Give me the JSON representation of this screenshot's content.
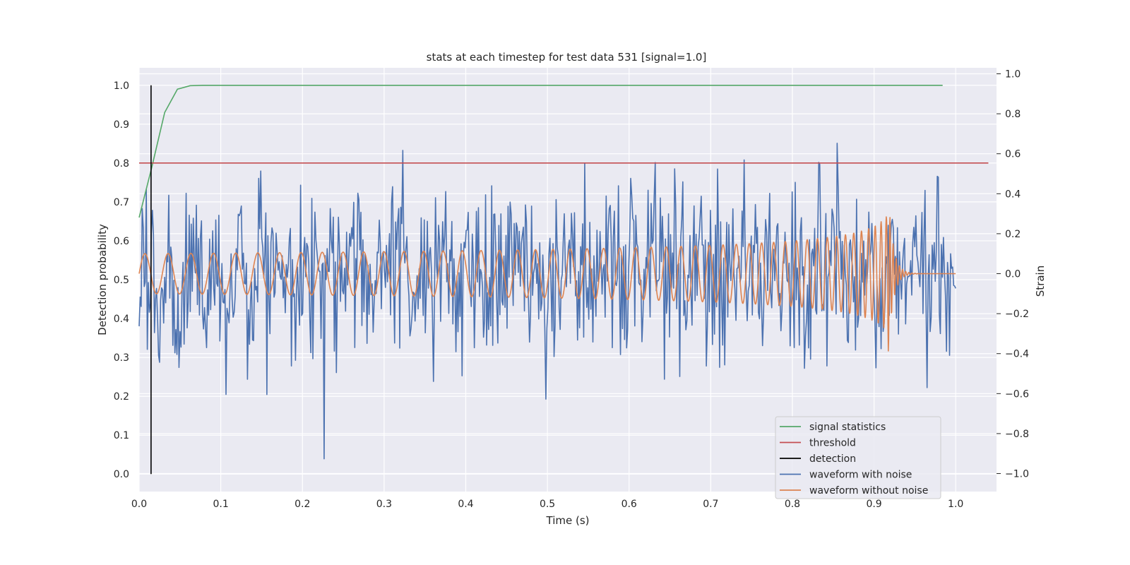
{
  "chart_data": {
    "type": "line",
    "title": "stats at each timestep for test data 531 [signal=1.0]",
    "xlabel": "Time (s)",
    "ylabel": "Detection probability",
    "y2label": "Strain",
    "xlim": [
      0.0,
      1.05
    ],
    "ylim": [
      -0.045,
      1.045
    ],
    "y2lim": [
      -1.09,
      1.03
    ],
    "xticks": [
      0.0,
      0.1,
      0.2,
      0.3,
      0.4,
      0.5,
      0.6,
      0.7,
      0.8,
      0.9,
      1.0
    ],
    "xtick_labels": [
      "0.0",
      "0.1",
      "0.2",
      "0.3",
      "0.4",
      "0.5",
      "0.6",
      "0.7",
      "0.8",
      "0.9",
      "1.0"
    ],
    "yticks": [
      0.0,
      0.1,
      0.2,
      0.3,
      0.4,
      0.5,
      0.6,
      0.7,
      0.8,
      0.9,
      1.0
    ],
    "ytick_labels": [
      "0.0",
      "0.1",
      "0.2",
      "0.3",
      "0.4",
      "0.5",
      "0.6",
      "0.7",
      "0.8",
      "0.9",
      "1.0"
    ],
    "y2ticks": [
      -1.0,
      -0.8,
      -0.6,
      -0.4,
      -0.2,
      0.0,
      0.2,
      0.4,
      0.6,
      0.8,
      1.0
    ],
    "y2tick_labels": [
      "−1.0",
      "−0.8",
      "−0.6",
      "−0.4",
      "−0.2",
      "0.0",
      "0.2",
      "0.4",
      "0.6",
      "0.8",
      "1.0"
    ],
    "grid": true,
    "legend_position": "lower-right",
    "series": [
      {
        "name": "signal statistics",
        "axis": "left",
        "color": "#55a868",
        "x": [
          0.0,
          0.0156,
          0.0313,
          0.0469,
          0.0625,
          0.0781,
          0.0938,
          0.25,
          0.5,
          0.75,
          0.984
        ],
        "y": [
          0.66,
          0.79,
          0.93,
          0.99,
          0.999,
          1.0,
          1.0,
          1.0,
          1.0,
          1.0,
          1.0
        ]
      },
      {
        "name": "threshold",
        "axis": "left",
        "color": "#c44e52",
        "x": [
          0.0,
          1.04
        ],
        "y": [
          0.8,
          0.8
        ]
      },
      {
        "name": "detection",
        "axis": "left",
        "color": "#000000",
        "x": [
          0.0146,
          0.0146
        ],
        "y": [
          0.0,
          1.0
        ]
      },
      {
        "name": "waveform with noise",
        "axis": "right",
        "color": "#4c72b0",
        "generated": {
          "type": "noise",
          "t_start": 0.0,
          "t_end": 1.0,
          "samples": 800,
          "sigma": 0.22,
          "seed": 531,
          "clip": [
            -1.0,
            1.0
          ]
        }
      },
      {
        "name": "waveform without noise",
        "axis": "right",
        "color": "#dd8452",
        "generated": {
          "type": "chirp",
          "t_start": 0.0,
          "t_end": 1.0,
          "t_merger": 0.917,
          "f0": 35,
          "amp0": 0.1,
          "amp_peak": 0.43,
          "ringdown_tau": 0.006,
          "samples": 2400
        }
      }
    ]
  }
}
